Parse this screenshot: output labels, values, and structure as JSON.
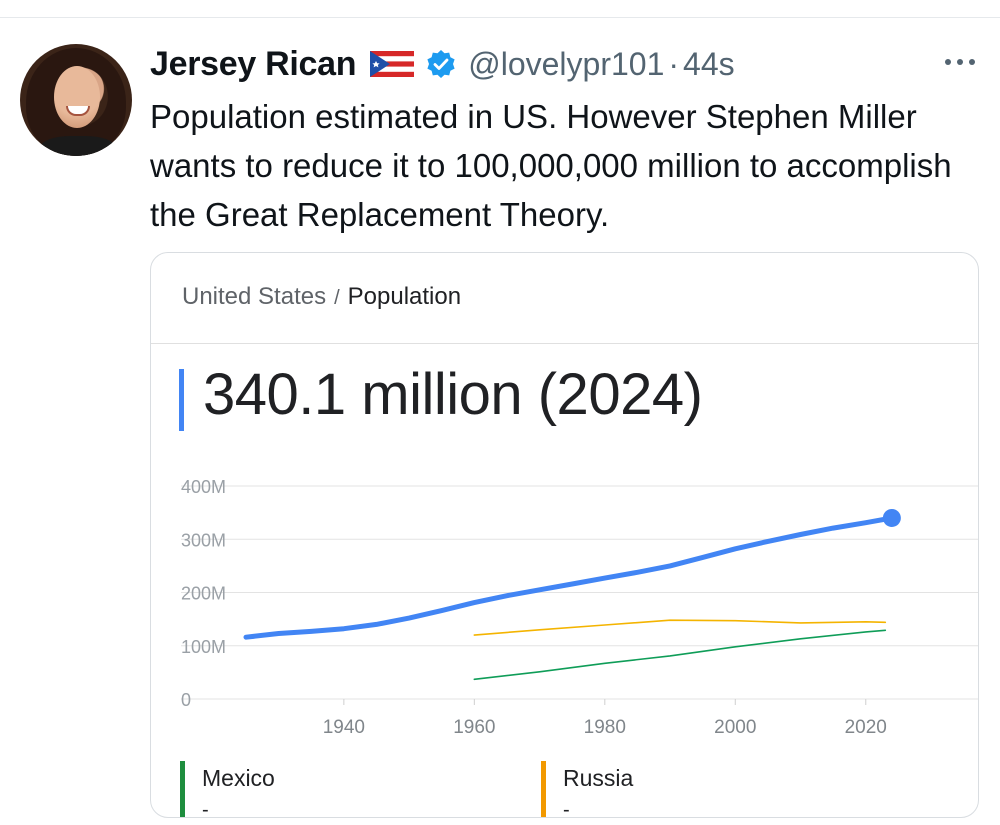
{
  "tweet": {
    "author_name": "Jersey Rican",
    "handle": "@lovelypr101",
    "separator": "·",
    "time": "44s",
    "text": "Population estimated in US. However Stephen Miller wants to reduce it to 100,000,000 million to accomplish the Great Replacement Theory.",
    "flag_icon": "puerto-rico-flag-icon",
    "verified_icon": "verified-badge-icon",
    "more_icon": "more-options-icon"
  },
  "card": {
    "breadcrumb_country": "United States",
    "breadcrumb_separator": "/",
    "breadcrumb_topic": "Population",
    "headline_value": "340.1 million (2024)",
    "accent_color": "#4285f4"
  },
  "chart_data": {
    "type": "line",
    "xlabel": "",
    "ylabel": "",
    "xlim": [
      1925,
      2030
    ],
    "ylim": [
      0,
      400
    ],
    "x_ticks": [
      "1940",
      "1960",
      "1980",
      "2000",
      "2020"
    ],
    "y_ticks": [
      "400M",
      "300M",
      "200M",
      "100M",
      "0"
    ],
    "grid": true,
    "series": [
      {
        "name": "United States",
        "color": "#4285f4",
        "x": [
          1925,
          1930,
          1935,
          1940,
          1945,
          1950,
          1955,
          1960,
          1965,
          1970,
          1975,
          1980,
          1985,
          1990,
          1995,
          2000,
          2005,
          2010,
          2015,
          2020,
          2024
        ],
        "y": [
          116,
          123,
          127,
          132,
          140,
          152,
          166,
          181,
          194,
          205,
          216,
          227,
          238,
          250,
          266,
          282,
          296,
          309,
          321,
          331,
          340
        ]
      },
      {
        "name": "Russia",
        "color": "#f4b400",
        "x": [
          1960,
          1970,
          1980,
          1990,
          2000,
          2010,
          2020,
          2023
        ],
        "y": [
          120,
          130,
          139,
          148,
          147,
          143,
          145,
          144
        ]
      },
      {
        "name": "Mexico",
        "color": "#0f9d58",
        "x": [
          1960,
          1970,
          1980,
          1990,
          2000,
          2010,
          2020,
          2023
        ],
        "y": [
          37,
          51,
          67,
          81,
          98,
          113,
          126,
          129
        ]
      }
    ],
    "legend": [
      {
        "name": "Mexico",
        "value": "-",
        "color": "#1e8e3e"
      },
      {
        "name": "Russia",
        "value": "-",
        "color": "#f29900"
      }
    ]
  }
}
